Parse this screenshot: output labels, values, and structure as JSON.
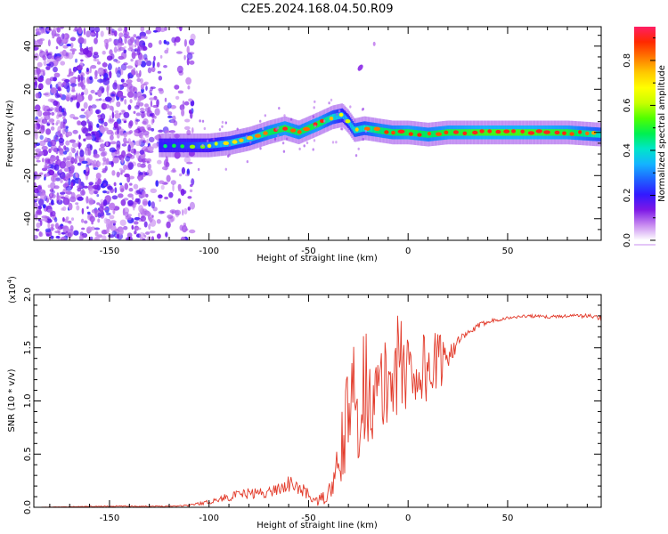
{
  "figure_title": "C2E5.2024.168.04.50.R09",
  "chart_data": [
    {
      "type": "heatmap",
      "xlabel": "Height of straight line (km)",
      "ylabel": "Frequency (Hz)",
      "xlim": [
        -188,
        97
      ],
      "ylim": [
        -50,
        49
      ],
      "x_ticks": [
        -150,
        -100,
        -50,
        0,
        50
      ],
      "y_ticks": [
        -40,
        -20,
        0,
        20,
        40
      ],
      "x_tick_labels": [
        "-150",
        "-100",
        "-50",
        "0",
        "50"
      ],
      "y_tick_labels": [
        "-40",
        "-20",
        "0",
        "20",
        "40"
      ],
      "colorbar": {
        "label": "Normalized spectral amplitude",
        "range": [
          0.0,
          0.95
        ],
        "ticks": [
          "0.0",
          "0.2",
          "0.4",
          "0.6",
          "0.8"
        ],
        "tick_values": [
          0.0,
          0.2,
          0.4,
          0.6,
          0.8
        ],
        "colormap": [
          "#ffffff",
          "#c88cf0",
          "#7d18e6",
          "#3219ff",
          "#1e64ff",
          "#14b4ff",
          "#00e6c8",
          "#00f050",
          "#50ff00",
          "#c8ff00",
          "#ffff00",
          "#ffc800",
          "#ff7800",
          "#ff2800",
          "#ff1e64"
        ]
      },
      "ridge": {
        "x": [
          -125,
          -110,
          -100,
          -90,
          -80,
          -70,
          -62,
          -55,
          -45,
          -38,
          -33,
          -30,
          -27,
          -22,
          -15,
          -8,
          0,
          10,
          20,
          40,
          60,
          80,
          97
        ],
        "y": [
          -6,
          -6,
          -6,
          -5,
          -3,
          0,
          2,
          0,
          4,
          7,
          8,
          5,
          1,
          2,
          1,
          0,
          0,
          -1,
          0,
          0,
          0,
          0,
          -1
        ],
        "amplitude": [
          0.3,
          0.35,
          0.45,
          0.55,
          0.55,
          0.7,
          0.75,
          0.7,
          0.75,
          0.6,
          0.5,
          0.5,
          0.6,
          0.6,
          0.7,
          0.7,
          0.75,
          0.7,
          0.75,
          0.8,
          0.8,
          0.75,
          0.6
        ]
      },
      "noise_region": {
        "x_start": -188,
        "x_end": -108
      }
    },
    {
      "type": "line",
      "xlabel": "Height of straight line (km)",
      "ylabel": "SNR (10 * v/v)",
      "y_multiplier_label": "(x10",
      "y_multiplier_exponent": "4",
      "xlim": [
        -188,
        97
      ],
      "ylim": [
        0.0,
        2.0
      ],
      "x_ticks": [
        -150,
        -100,
        -50,
        0,
        50
      ],
      "y_ticks": [
        0.0,
        0.5,
        1.0,
        1.5,
        2.0
      ],
      "x_tick_labels": [
        "-150",
        "-100",
        "-50",
        "0",
        "50"
      ],
      "y_tick_labels": [
        "0.0",
        "0.5",
        "1.0",
        "1.5",
        "2.0"
      ],
      "line_color": "#e23a2a",
      "series": [
        {
          "x": [
            -188,
            -150,
            -120,
            -110,
            -100,
            -90,
            -80,
            -70,
            -60,
            -52,
            -46,
            -40,
            -35,
            -32,
            -28,
            -25,
            -20,
            -15,
            -10,
            -5,
            0,
            5,
            10,
            15,
            20,
            25,
            30,
            35,
            40,
            50,
            60,
            70,
            80,
            90,
            97
          ],
          "values": [
            0.0,
            0.01,
            0.01,
            0.02,
            0.05,
            0.1,
            0.13,
            0.14,
            0.22,
            0.15,
            0.05,
            0.12,
            0.35,
            0.7,
            0.95,
            1.05,
            1.15,
            1.0,
            1.2,
            1.35,
            1.3,
            1.3,
            1.3,
            1.35,
            1.45,
            1.55,
            1.63,
            1.7,
            1.75,
            1.78,
            1.8,
            1.79,
            1.8,
            1.8,
            1.78
          ],
          "noise": [
            0.0,
            0.005,
            0.005,
            0.01,
            0.02,
            0.04,
            0.05,
            0.05,
            0.08,
            0.06,
            0.04,
            0.08,
            0.25,
            0.45,
            0.6,
            0.6,
            0.55,
            0.5,
            0.45,
            0.5,
            0.55,
            0.45,
            0.4,
            0.3,
            0.15,
            0.06,
            0.04,
            0.03,
            0.02,
            0.015,
            0.015,
            0.015,
            0.015,
            0.02,
            0.03
          ]
        }
      ]
    }
  ]
}
